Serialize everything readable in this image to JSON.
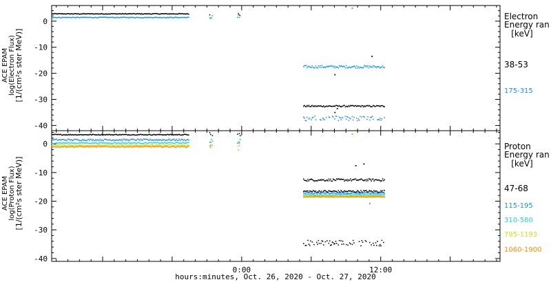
{
  "chart_data": [
    {
      "type": "scatter",
      "ylabel": [
        "ACE EPAM",
        "log(Electron Flux)",
        "[1/(cm²s ster MeV)]"
      ],
      "ylim": [
        -42,
        6
      ],
      "yticks": [
        0,
        -10,
        -20,
        -30,
        -40
      ],
      "legend_title": [
        "Electron",
        "Energy ran",
        "[keV]"
      ],
      "legend_placement": "right",
      "series": [
        {
          "name": "38-53",
          "color": "#000000",
          "segments": [
            {
              "x": [
                -16.4,
                -4.6
              ],
              "y": 2.8,
              "jitter": 0.15
            },
            {
              "x": [
                -2.8,
                -2.5
              ],
              "y": 2.6,
              "jitter": 0.8
            },
            {
              "x": [
                -0.4,
                -0.1
              ],
              "y": 2.6,
              "jitter": 0.8
            },
            {
              "x": [
                5.3,
                12.3
              ],
              "y": -32.6,
              "jitter": 0.3
            }
          ],
          "points": [
            [
              11.2,
              -13.5
            ],
            [
              8.0,
              -20.5
            ],
            [
              8.2,
              -33.5
            ],
            [
              8.0,
              -35.0
            ]
          ]
        },
        {
          "name": "175-315",
          "color": "#1e90e8",
          "segments": [
            {
              "x": [
                -16.4,
                -4.6
              ],
              "y": 1.4,
              "jitter": 0.15
            },
            {
              "x": [
                -2.8,
                -2.5
              ],
              "y": 1.6,
              "jitter": 0.8
            },
            {
              "x": [
                -0.4,
                -0.1
              ],
              "y": 1.6,
              "jitter": 0.8
            },
            {
              "x": [
                5.3,
                12.3
              ],
              "y": -17.5,
              "jitter": 0.5
            },
            {
              "x": [
                5.3,
                12.3
              ],
              "y": -37.4,
              "jitter": 1.0
            }
          ],
          "points": [
            [
              9.5,
              5.0
            ]
          ]
        }
      ]
    },
    {
      "type": "scatter",
      "xlabel": "hours:minutes, Oct. 26, 2020 - Oct. 27, 2020",
      "xlim": [
        -16.4,
        22.3
      ],
      "xticks": [
        0,
        12
      ],
      "xticklabels": [
        "0:00",
        "12:00"
      ],
      "ylabel": [
        "ACE EPAM",
        "log(Proton Flux)",
        "[1/(cm²s ster MeV)]"
      ],
      "ylim": [
        -41,
        4.6
      ],
      "yticks": [
        0,
        -10,
        -20,
        -30,
        -40
      ],
      "legend_title": [
        "Proton",
        "Energy ran",
        "[keV]"
      ],
      "legend_placement": "right",
      "series": [
        {
          "name": "47-68",
          "color": "#000000",
          "segments": [
            {
              "x": [
                -16.4,
                -4.6
              ],
              "y": 3.2,
              "jitter": 0.15
            },
            {
              "x": [
                -2.8,
                -2.5
              ],
              "y": 3.0,
              "jitter": 1.0
            },
            {
              "x": [
                -0.4,
                -0.1
              ],
              "y": 3.0,
              "jitter": 1.0
            },
            {
              "x": [
                5.3,
                12.3
              ],
              "y": -12.6,
              "jitter": 0.4
            },
            {
              "x": [
                5.3,
                12.3
              ],
              "y": -16.6,
              "jitter": 0.4
            },
            {
              "x": [
                5.3,
                12.3
              ],
              "y": -34.6,
              "jitter": 1.0
            }
          ],
          "points": [
            [
              10.5,
              -7.0
            ],
            [
              9.8,
              -7.6
            ]
          ]
        },
        {
          "name": "115-195",
          "color": "#1e90e8",
          "segments": [
            {
              "x": [
                -16.4,
                -4.6
              ],
              "y": 1.4,
              "jitter": 0.3
            },
            {
              "x": [
                -2.8,
                -2.5
              ],
              "y": 1.2,
              "jitter": 1.0
            },
            {
              "x": [
                -0.4,
                -0.1
              ],
              "y": 1.2,
              "jitter": 1.0
            },
            {
              "x": [
                5.3,
                12.3
              ],
              "y": -17.2,
              "jitter": 0.2
            }
          ],
          "points": [
            [
              11.0,
              -20.8
            ]
          ]
        },
        {
          "name": "310-580",
          "color": "#22d0d8",
          "segments": [
            {
              "x": [
                -16.4,
                -4.6
              ],
              "y": 0.3,
              "jitter": 0.2
            },
            {
              "x": [
                -2.8,
                -2.5
              ],
              "y": 0.0,
              "jitter": 1.0
            },
            {
              "x": [
                -0.4,
                -0.1
              ],
              "y": 0.0,
              "jitter": 1.0
            },
            {
              "x": [
                5.3,
                12.3
              ],
              "y": -17.8,
              "jitter": 0.15
            }
          ],
          "points": []
        },
        {
          "name": "795-1193",
          "color": "#d8dc10",
          "segments": [
            {
              "x": [
                -16.4,
                -4.6
              ],
              "y": -0.5,
              "jitter": 0.2
            },
            {
              "x": [
                -2.8,
                -2.5
              ],
              "y": -0.8,
              "jitter": 1.0
            },
            {
              "x": [
                -0.4,
                -0.1
              ],
              "y": -0.8,
              "jitter": 1.0
            },
            {
              "x": [
                5.3,
                12.3
              ],
              "y": -18.2,
              "jitter": 0.12
            }
          ],
          "points": []
        },
        {
          "name": "1060-1900",
          "color": "#ff8c00",
          "segments": [
            {
              "x": [
                -16.4,
                -4.6
              ],
              "y": -1.0,
              "jitter": 0.2
            },
            {
              "x": [
                -2.8,
                -2.5
              ],
              "y": -1.4,
              "jitter": 1.0
            },
            {
              "x": [
                -0.4,
                -0.1
              ],
              "y": -1.4,
              "jitter": 1.0
            },
            {
              "x": [
                5.3,
                12.3
              ],
              "y": -18.5,
              "jitter": 0.1
            }
          ],
          "points": [
            [
              9.5,
              3.4
            ]
          ]
        }
      ]
    }
  ]
}
